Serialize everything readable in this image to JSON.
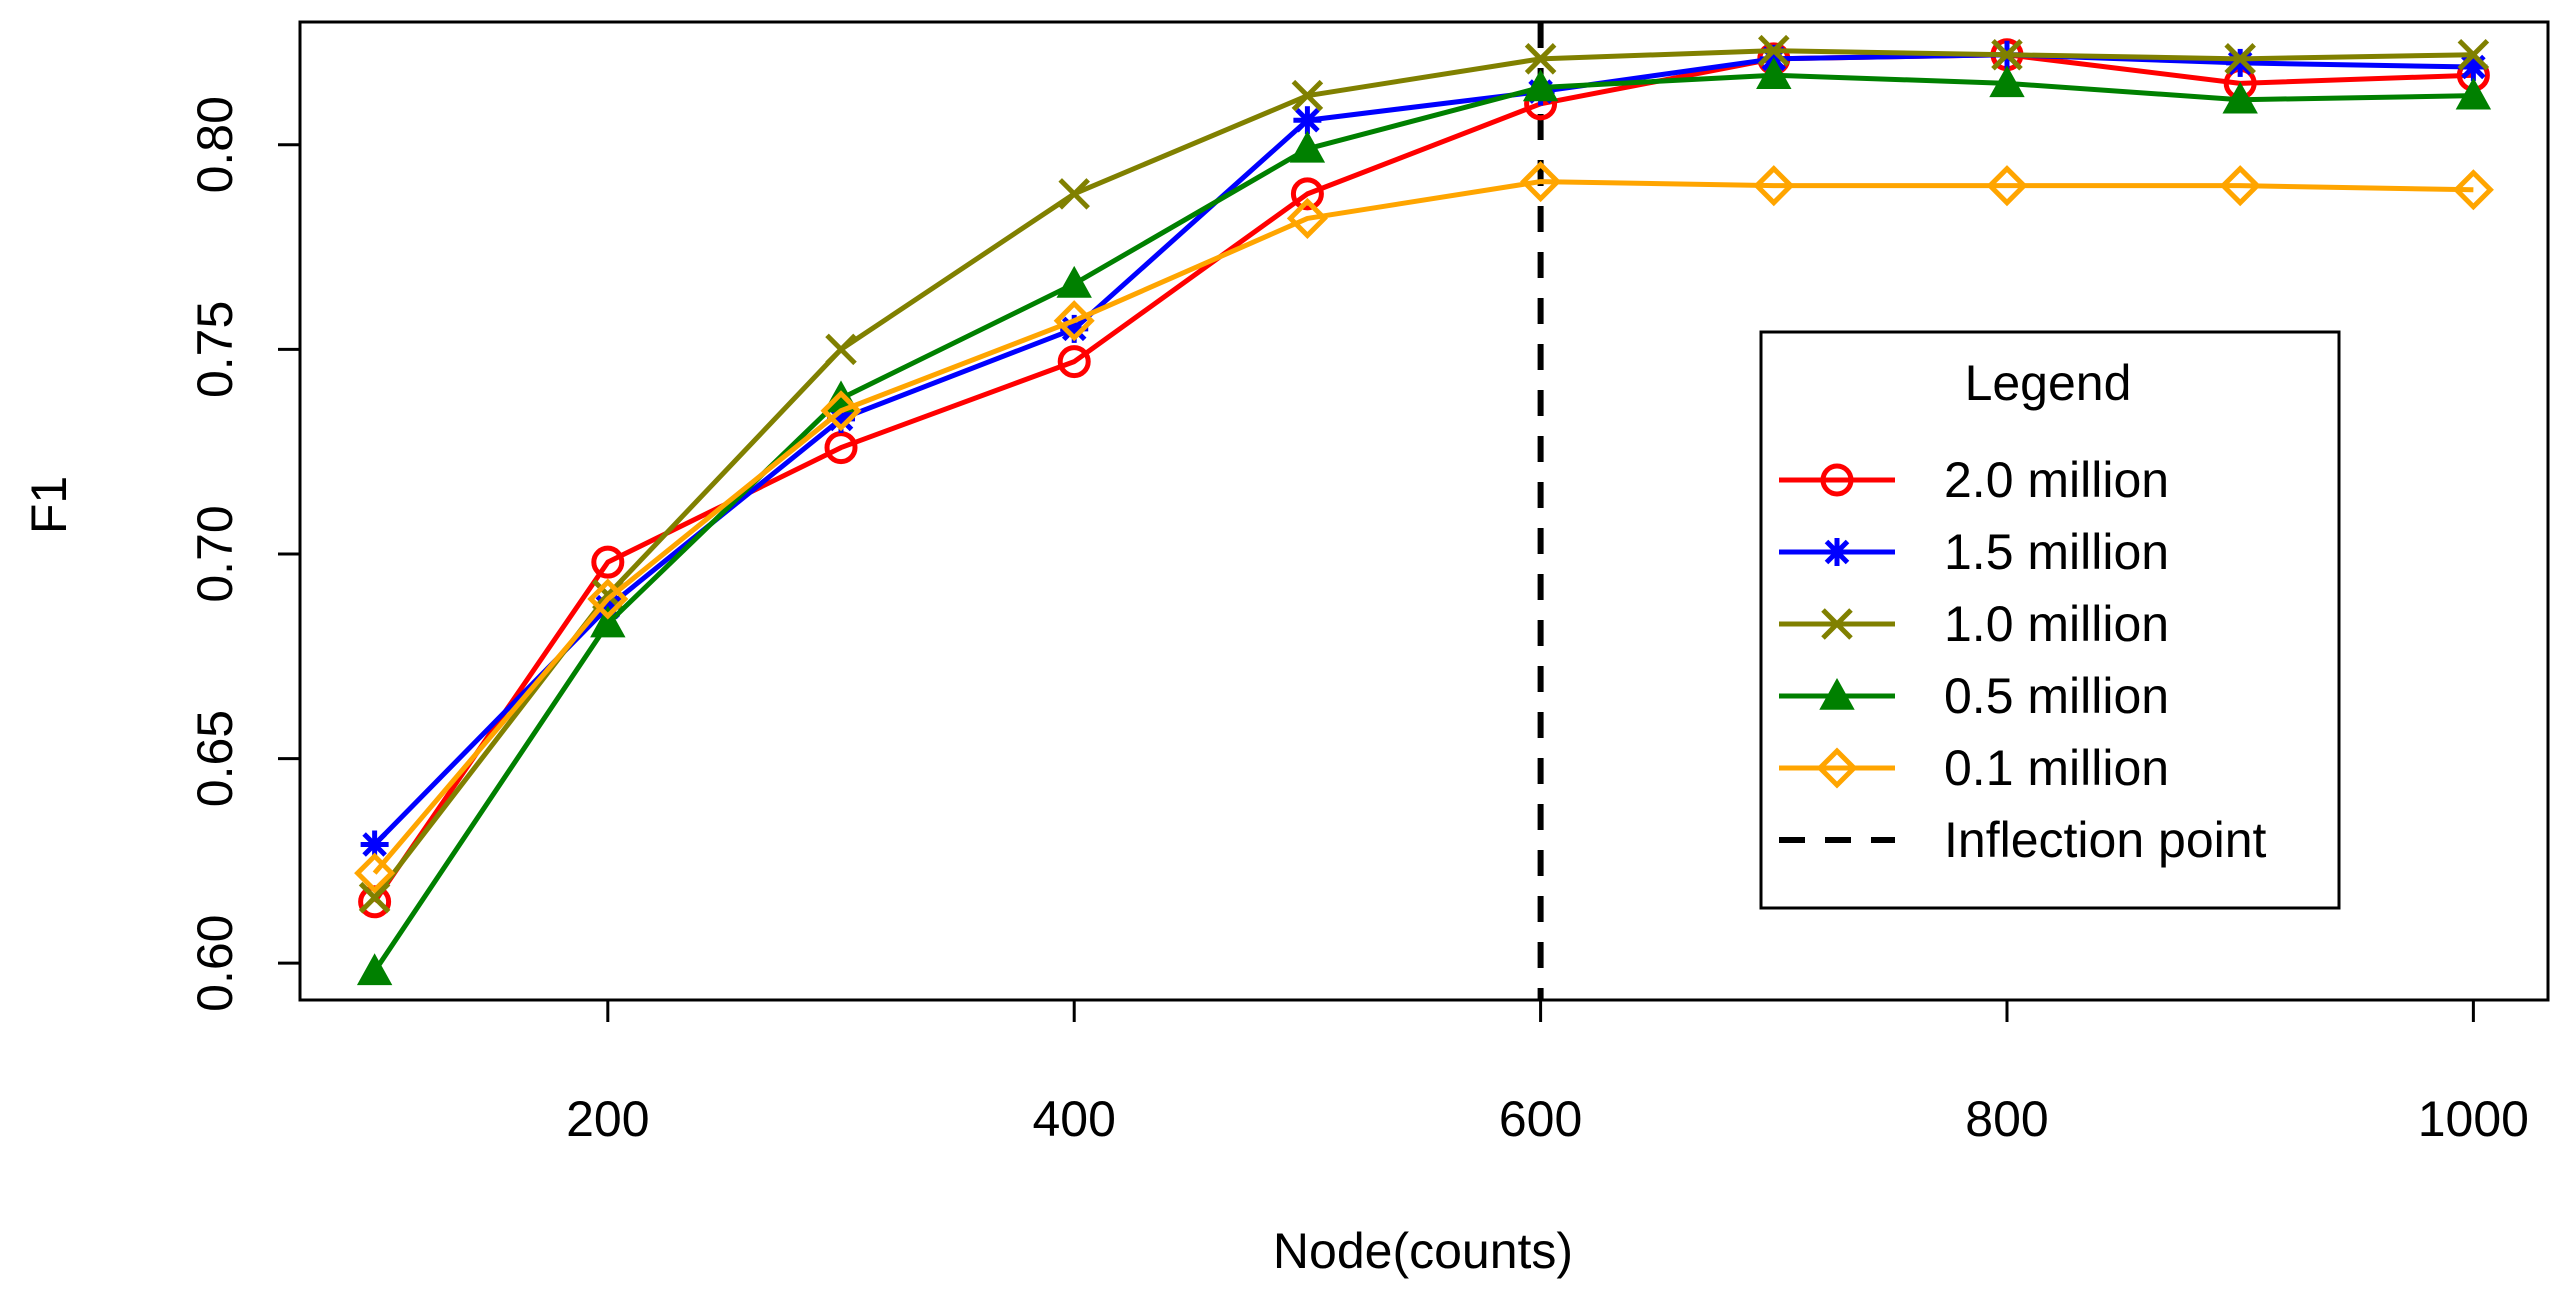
{
  "chart_data": {
    "type": "line",
    "title": "",
    "xlabel": "Node(counts)",
    "ylabel": "F1",
    "xlim": [
      68,
      1032
    ],
    "ylim": [
      0.591,
      0.83
    ],
    "xticks": [
      200,
      400,
      600,
      800,
      1000
    ],
    "yticks": [
      0.6,
      0.65,
      0.7,
      0.75,
      0.8
    ],
    "ytick_labels": [
      "0.60",
      "0.65",
      "0.70",
      "0.75",
      "0.80"
    ],
    "grid": false,
    "x": [
      100,
      200,
      300,
      400,
      500,
      600,
      700,
      800,
      900,
      1000
    ],
    "series": [
      {
        "name": "2.0 million",
        "color": "#ff0000",
        "marker": "circle",
        "values": [
          0.615,
          0.698,
          0.726,
          0.747,
          0.788,
          0.81,
          0.821,
          0.822,
          0.815,
          0.817
        ]
      },
      {
        "name": "1.5 million",
        "color": "#0000ff",
        "marker": "asterisk",
        "values": [
          0.629,
          0.687,
          0.733,
          0.755,
          0.806,
          0.813,
          0.821,
          0.822,
          0.82,
          0.819
        ]
      },
      {
        "name": "1.0 million",
        "color": "#808000",
        "marker": "cross",
        "values": [
          0.616,
          0.69,
          0.75,
          0.788,
          0.812,
          0.821,
          0.823,
          0.822,
          0.821,
          0.822
        ]
      },
      {
        "name": "0.5 million",
        "color": "#008000",
        "marker": "triangle",
        "values": [
          0.598,
          0.683,
          0.738,
          0.766,
          0.799,
          0.814,
          0.817,
          0.815,
          0.811,
          0.812
        ]
      },
      {
        "name": "0.1 million",
        "color": "#ffa500",
        "marker": "diamond",
        "values": [
          0.622,
          0.689,
          0.735,
          0.757,
          0.782,
          0.791,
          0.79,
          0.79,
          0.79,
          0.789
        ]
      }
    ],
    "inflection": {
      "name": "Inflection point",
      "x": 600,
      "color": "#000000"
    },
    "legend": {
      "title": "Legend",
      "position": "right",
      "entries": [
        "2.0 million",
        "1.5 million",
        "1.0 million",
        "0.5 million",
        "0.1 million",
        "Inflection point"
      ]
    }
  }
}
